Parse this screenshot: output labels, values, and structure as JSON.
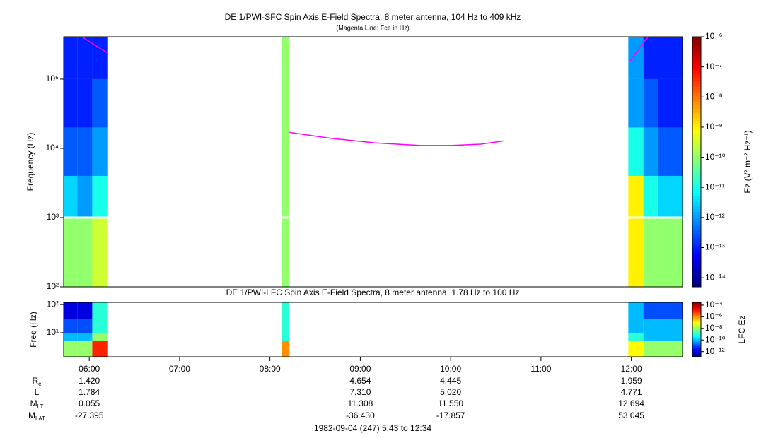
{
  "chart_data": [
    {
      "type": "heatmap",
      "title": "DE 1/PWI-SFC  Spin Axis E-Field Spectra, 8 meter antenna, 104 Hz to 409 kHz",
      "subtitle": "(Magenta Line: Fce in Hz)",
      "ylabel": "Frequency (Hz)",
      "colorbar_label": "Ez (V² m⁻² Hz⁻¹)",
      "colormap": "jet",
      "log_y": true,
      "xlim": [
        343,
        754
      ],
      "xticks": [
        {
          "value": 360,
          "label": "06:00"
        },
        {
          "value": 420,
          "label": "07:00"
        },
        {
          "value": 480,
          "label": "08:00"
        },
        {
          "value": 540,
          "label": "09:00"
        },
        {
          "value": 600,
          "label": "10:00"
        },
        {
          "value": 660,
          "label": "11:00"
        },
        {
          "value": 720,
          "label": "12:00"
        }
      ],
      "ylim": [
        100,
        409000
      ],
      "yticks": [
        {
          "value": 100,
          "label": "10²"
        },
        {
          "value": 1000,
          "label": "10³"
        },
        {
          "value": 10000,
          "label": "10⁴"
        },
        {
          "value": 100000,
          "label": "10⁵"
        }
      ],
      "zlim": [
        5e-15,
        1e-06
      ],
      "zticks": [
        {
          "value": 1e-06,
          "label": "10⁻⁶"
        },
        {
          "value": 1e-07,
          "label": "10⁻⁷"
        },
        {
          "value": 1e-08,
          "label": "10⁻⁸"
        },
        {
          "value": 1e-09,
          "label": "10⁻⁹"
        },
        {
          "value": 1e-10,
          "label": "10⁻¹⁰"
        },
        {
          "value": 1e-11,
          "label": "10⁻¹¹"
        },
        {
          "value": 1e-12,
          "label": "10⁻¹²"
        },
        {
          "value": 1e-13,
          "label": "10⁻¹³"
        },
        {
          "value": 1e-14,
          "label": "10⁻¹⁴"
        }
      ],
      "x_edges": [
        343,
        352,
        362,
        372,
        488,
        493,
        718,
        728,
        738,
        754
      ],
      "y_edges": [
        100,
        1000,
        4000,
        20000,
        100000,
        409000
      ],
      "z": [
        [
          1e-10,
          1e-10,
          3e-10,
          null,
          1e-10,
          null,
          1e-09,
          1e-10,
          1e-10
        ],
        [
          3e-12,
          1e-12,
          1e-11,
          null,
          1e-10,
          null,
          1e-09,
          1e-11,
          3e-12
        ],
        [
          3e-13,
          3e-13,
          1e-12,
          null,
          1e-10,
          null,
          1e-11,
          1e-12,
          3e-13
        ],
        [
          1e-13,
          1e-13,
          3e-13,
          null,
          1e-10,
          null,
          1e-12,
          3e-13,
          1e-13
        ],
        [
          1e-13,
          1e-13,
          1e-13,
          null,
          1e-10,
          null,
          1e-12,
          1e-13,
          1e-13
        ]
      ],
      "series": [
        {
          "color": "#ff00ff",
          "x": [
            355,
            372,
            430,
            493,
            520,
            550,
            580,
            600,
            620,
            635,
            680,
            719,
            731
          ],
          "values": [
            409000,
            240000,
            null,
            17000,
            14000,
            12000,
            11000,
            11000,
            11500,
            12800,
            null,
            180000,
            409000
          ]
        }
      ]
    },
    {
      "type": "heatmap",
      "title": "DE 1/PWI-LFC  Spin Axis E-Field Spectra, 8 meter antenna, 1.78 Hz to 100 Hz",
      "ylabel": "Freq (Hz)",
      "colorbar_label": "LFC Ez",
      "colormap": "jet",
      "log_y": true,
      "xlim": [
        343,
        754
      ],
      "ylim": [
        1.4,
        120
      ],
      "yticks": [
        {
          "value": 10,
          "label": "10¹"
        },
        {
          "value": 100,
          "label": "10²"
        }
      ],
      "zlim": [
        1.3e-13,
        0.0003
      ],
      "zticks": [
        {
          "value": 0.0001,
          "label": "10⁻⁴"
        },
        {
          "value": 1e-06,
          "label": "10⁻⁶"
        },
        {
          "value": 1e-08,
          "label": "10⁻⁸"
        },
        {
          "value": 1e-10,
          "label": "10⁻¹⁰"
        },
        {
          "value": 1e-12,
          "label": "10⁻¹²"
        }
      ],
      "x_edges": [
        343,
        352,
        362,
        372,
        488,
        493,
        718,
        728,
        738,
        754
      ],
      "y_edges": [
        1.4,
        5,
        10,
        30,
        120
      ],
      "z": [
        [
          1e-08,
          1e-08,
          1e-05,
          null,
          1e-06,
          null,
          1e-07,
          1e-08,
          1e-08
        ],
        [
          1e-10,
          1e-10,
          1e-08,
          null,
          1e-09,
          null,
          1e-09,
          1e-10,
          1e-10
        ],
        [
          1e-11,
          1e-11,
          1e-09,
          null,
          1e-09,
          null,
          1e-10,
          1e-10,
          1e-10
        ],
        [
          1e-12,
          1e-12,
          1e-09,
          null,
          1e-09,
          null,
          1e-10,
          1e-11,
          1e-11
        ]
      ]
    }
  ],
  "ephemeris": {
    "labels": [
      {
        "main": "R",
        "sub": "e"
      },
      {
        "main": "L"
      },
      {
        "main": "M",
        "sub": "LT"
      },
      {
        "main": "M",
        "sub": "LAT"
      }
    ],
    "times": [
      360,
      540,
      600,
      720
    ],
    "rows": [
      [
        "1.420",
        "4.654",
        "4.445",
        "1.959"
      ],
      [
        "1.784",
        "7.310",
        "5.020",
        "4.771"
      ],
      [
        "0.055",
        "11.308",
        "11.550",
        "12.694"
      ],
      [
        "-27.395",
        "-36.430",
        "-17.857",
        "53.045"
      ]
    ]
  },
  "footer": "1982-09-04 (247) 5:43 to 12:34"
}
